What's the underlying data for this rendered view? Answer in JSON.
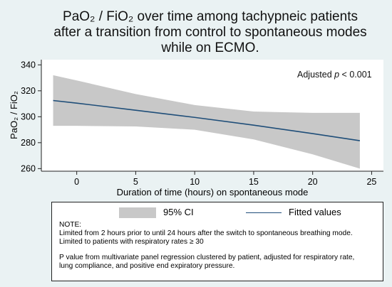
{
  "title": {
    "line1": "PaO₂ / FiO₂ over time among tachypneic patients",
    "line2": "after a transition from control to spontaneous modes",
    "line3": "while on ECMO."
  },
  "annotation": "Adjusted p < 0.001",
  "legend": {
    "ci_label": "95% CI",
    "fit_label": "Fitted values"
  },
  "notes": {
    "heading": "NOTE:",
    "line1": "Limited from 2 hours prior to until 24 hours after the switch to spontaneous breathing mode.",
    "line2": "Limited to patients with respiratory rates ≥ 30",
    "line3": "P value from multivariate panel regression clustered by patient, adjusted for respiratory rate,",
    "line4": "lung compliance, and positive end expiratory pressure."
  },
  "colors": {
    "background": "#eaf2f3",
    "plot_background": "#ffffff",
    "ci_band": "#c8c8c8",
    "fit_line": "#1f4e79"
  },
  "chart_data": {
    "type": "line",
    "title": "PaO₂ / FiO₂ over time among tachypneic patients after a transition from control to spontaneous modes while on ECMO.",
    "xlabel": "Duration of time (hours) on spontaneous mode",
    "ylabel": "PaO₂ / FiO₂",
    "xlim": [
      -3,
      26
    ],
    "ylim": [
      258,
      344
    ],
    "xticks": [
      0,
      5,
      10,
      15,
      20,
      25
    ],
    "yticks": [
      260,
      280,
      300,
      320,
      340
    ],
    "grid": false,
    "legend_position": "bottom",
    "series": [
      {
        "name": "Fitted values",
        "x": [
          -2,
          0,
          5,
          10,
          15,
          20,
          24
        ],
        "y": [
          312.5,
          310.5,
          305,
          299.5,
          293.5,
          287,
          281.5
        ]
      },
      {
        "name": "95% CI",
        "x": [
          -2,
          0,
          5,
          10,
          15,
          20,
          24
        ],
        "lower": [
          293,
          293,
          292.5,
          290,
          282.5,
          271,
          260
        ],
        "upper": [
          332,
          328,
          317.5,
          309,
          304,
          303,
          303
        ]
      }
    ]
  }
}
